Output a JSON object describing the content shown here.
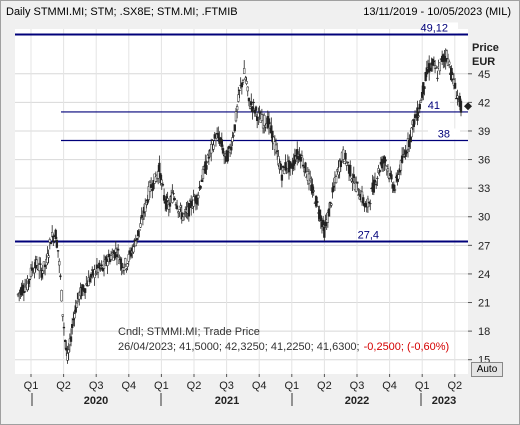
{
  "header": {
    "title": "Daily STMMI.MI; STM; .SX8E; STM.MI; .FTMIB",
    "date_range": "13/11/2019 - 10/05/2023 (MIL)"
  },
  "price_label": "Price",
  "currency": "EUR",
  "auto_label": "Auto",
  "info": {
    "line1": "Cndl; STMMI.MI; Trade Price",
    "line2_values": "26/04/2023; 41,5000; 42,3250; 41,2250; 41,6300;",
    "line2_change": "-0,2500; (-0,60%)"
  },
  "colors": {
    "plot_bg": "#ffffff",
    "candle": "#222222",
    "hline": "#00007a",
    "change_negative": "#d40000"
  },
  "chart_data": {
    "type": "candlestick",
    "y_ticks": [
      "15",
      "18",
      "21",
      "24",
      "27",
      "30",
      "33",
      "36",
      "39",
      "42",
      "45"
    ],
    "ylim": [
      13.5,
      49.7
    ],
    "x_ticks": [
      "Q1",
      "Q2",
      "Q3",
      "Q4",
      "Q1",
      "Q2",
      "Q3",
      "Q4",
      "Q1",
      "Q2",
      "Q3",
      "Q4",
      "Q1",
      "Q2"
    ],
    "years": [
      "2020",
      "2021",
      "2022",
      "2023"
    ],
    "levels": [
      {
        "label": "49,12",
        "value": 49.12
      },
      {
        "label": "41",
        "value": 41.0
      },
      {
        "label": "38",
        "value": 38.0
      },
      {
        "label": "27,4",
        "value": 27.4
      }
    ],
    "last_price": 41.6,
    "series": [
      {
        "t": 0,
        "v": 21.8
      },
      {
        "t": 2,
        "v": 22.6
      },
      {
        "t": 4,
        "v": 22.8
      },
      {
        "t": 6,
        "v": 24.5
      },
      {
        "t": 8,
        "v": 25.0
      },
      {
        "t": 10,
        "v": 24.3
      },
      {
        "t": 12,
        "v": 25.0
      },
      {
        "t": 14,
        "v": 27.8
      },
      {
        "t": 16,
        "v": 28.2
      },
      {
        "t": 17,
        "v": 26.5
      },
      {
        "t": 18,
        "v": 23.5
      },
      {
        "t": 19,
        "v": 20.0
      },
      {
        "t": 20,
        "v": 17.0
      },
      {
        "t": 21,
        "v": 15.0
      },
      {
        "t": 22,
        "v": 16.5
      },
      {
        "t": 23,
        "v": 18.5
      },
      {
        "t": 24,
        "v": 20.0
      },
      {
        "t": 26,
        "v": 21.8
      },
      {
        "t": 28,
        "v": 22.5
      },
      {
        "t": 30,
        "v": 23.3
      },
      {
        "t": 32,
        "v": 24.0
      },
      {
        "t": 34,
        "v": 24.5
      },
      {
        "t": 36,
        "v": 24.5
      },
      {
        "t": 38,
        "v": 25.5
      },
      {
        "t": 40,
        "v": 26.0
      },
      {
        "t": 42,
        "v": 26.5
      },
      {
        "t": 44,
        "v": 25.0
      },
      {
        "t": 46,
        "v": 25.0
      },
      {
        "t": 48,
        "v": 26.2
      },
      {
        "t": 50,
        "v": 27.5
      },
      {
        "t": 52,
        "v": 29.0
      },
      {
        "t": 54,
        "v": 31.0
      },
      {
        "t": 56,
        "v": 33.0
      },
      {
        "t": 58,
        "v": 33.8
      },
      {
        "t": 60,
        "v": 35.0
      },
      {
        "t": 62,
        "v": 32.0
      },
      {
        "t": 64,
        "v": 31.0
      },
      {
        "t": 66,
        "v": 32.5
      },
      {
        "t": 68,
        "v": 31.0
      },
      {
        "t": 70,
        "v": 30.0
      },
      {
        "t": 72,
        "v": 30.5
      },
      {
        "t": 74,
        "v": 31.5
      },
      {
        "t": 76,
        "v": 32.0
      },
      {
        "t": 78,
        "v": 34.0
      },
      {
        "t": 80,
        "v": 35.5
      },
      {
        "t": 82,
        "v": 37.0
      },
      {
        "t": 84,
        "v": 38.5
      },
      {
        "t": 86,
        "v": 38.0
      },
      {
        "t": 88,
        "v": 36.0
      },
      {
        "t": 90,
        "v": 37.0
      },
      {
        "t": 92,
        "v": 39.5
      },
      {
        "t": 94,
        "v": 43.0
      },
      {
        "t": 96,
        "v": 45.0
      },
      {
        "t": 97,
        "v": 44.0
      },
      {
        "t": 98,
        "v": 42.0
      },
      {
        "t": 100,
        "v": 41.5
      },
      {
        "t": 102,
        "v": 40.5
      },
      {
        "t": 104,
        "v": 40.0
      },
      {
        "t": 106,
        "v": 40.0
      },
      {
        "t": 108,
        "v": 38.5
      },
      {
        "t": 110,
        "v": 36.5
      },
      {
        "t": 112,
        "v": 34.5
      },
      {
        "t": 114,
        "v": 35.5
      },
      {
        "t": 116,
        "v": 35.0
      },
      {
        "t": 118,
        "v": 36.5
      },
      {
        "t": 120,
        "v": 36.5
      },
      {
        "t": 122,
        "v": 35.0
      },
      {
        "t": 124,
        "v": 33.5
      },
      {
        "t": 126,
        "v": 32.0
      },
      {
        "t": 128,
        "v": 30.5
      },
      {
        "t": 130,
        "v": 28.5
      },
      {
        "t": 132,
        "v": 30.5
      },
      {
        "t": 134,
        "v": 33.0
      },
      {
        "t": 136,
        "v": 35.0
      },
      {
        "t": 138,
        "v": 36.5
      },
      {
        "t": 140,
        "v": 35.5
      },
      {
        "t": 142,
        "v": 34.0
      },
      {
        "t": 144,
        "v": 33.0
      },
      {
        "t": 146,
        "v": 32.0
      },
      {
        "t": 148,
        "v": 30.8
      },
      {
        "t": 150,
        "v": 32.5
      },
      {
        "t": 152,
        "v": 34.0
      },
      {
        "t": 154,
        "v": 35.5
      },
      {
        "t": 156,
        "v": 36.0
      },
      {
        "t": 158,
        "v": 34.0
      },
      {
        "t": 160,
        "v": 33.0
      },
      {
        "t": 162,
        "v": 35.0
      },
      {
        "t": 164,
        "v": 36.5
      },
      {
        "t": 166,
        "v": 38.0
      },
      {
        "t": 168,
        "v": 40.0
      },
      {
        "t": 170,
        "v": 41.0
      },
      {
        "t": 172,
        "v": 43.5
      },
      {
        "t": 174,
        "v": 45.5
      },
      {
        "t": 176,
        "v": 46.0
      },
      {
        "t": 178,
        "v": 45.0
      },
      {
        "t": 180,
        "v": 46.5
      },
      {
        "t": 182,
        "v": 47.0
      },
      {
        "t": 184,
        "v": 45.0
      },
      {
        "t": 186,
        "v": 43.0
      },
      {
        "t": 188,
        "v": 41.6
      }
    ]
  }
}
